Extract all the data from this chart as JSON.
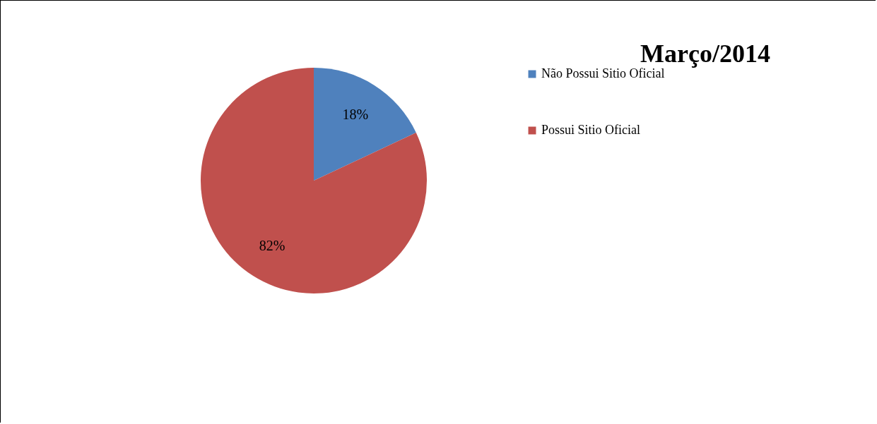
{
  "chart_data": {
    "type": "pie",
    "title": "Março/2014",
    "categories": [
      "Não Possui Sitio Oficial",
      "Possui Sitio Oficial"
    ],
    "values": [
      18,
      82
    ],
    "colors": [
      "#4f81bd",
      "#c0504d"
    ],
    "value_labels": [
      "18%",
      "82%"
    ],
    "legend": "right"
  }
}
